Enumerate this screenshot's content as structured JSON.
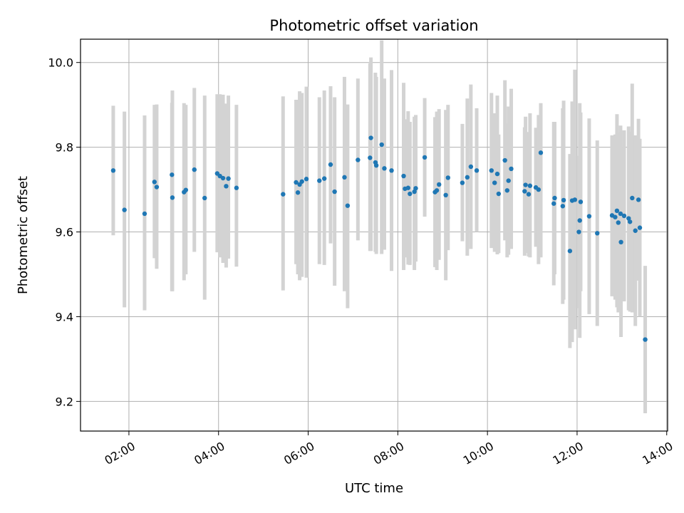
{
  "chart_data": {
    "type": "scatter",
    "title": "Photometric offset variation",
    "xlabel": "UTC time",
    "ylabel": "Photometric offset",
    "xlim_hours": [
      0.92,
      14.02
    ],
    "ylim": [
      9.13,
      10.055
    ],
    "grid": true,
    "x_ticks": [
      {
        "hour": 2,
        "label": "02:00"
      },
      {
        "hour": 4,
        "label": "04:00"
      },
      {
        "hour": 6,
        "label": "06:00"
      },
      {
        "hour": 8,
        "label": "08:00"
      },
      {
        "hour": 10,
        "label": "10:00"
      },
      {
        "hour": 12,
        "label": "12:00"
      },
      {
        "hour": 14,
        "label": "14:00"
      }
    ],
    "y_ticks": [
      {
        "value": 9.2,
        "label": "9.2"
      },
      {
        "value": 9.4,
        "label": "9.4"
      },
      {
        "value": 9.6,
        "label": "9.6"
      },
      {
        "value": 9.8,
        "label": "9.8"
      },
      {
        "value": 10.0,
        "label": "10.0"
      }
    ],
    "point_color": "#1f77b4",
    "errorbar_color": "#d3d3d3",
    "series": [
      {
        "name": "offset",
        "x_hours": [
          1.65,
          1.9,
          2.35,
          2.57,
          2.62,
          2.96,
          2.97,
          3.23,
          3.27,
          3.46,
          3.69,
          3.97,
          4.03,
          4.1,
          4.17,
          4.22,
          4.4,
          5.44,
          5.73,
          5.77,
          5.81,
          5.86,
          5.96,
          6.25,
          6.36,
          6.5,
          6.59,
          6.81,
          6.88,
          7.11,
          7.38,
          7.4,
          7.5,
          7.52,
          7.64,
          7.7,
          7.86,
          8.13,
          8.16,
          8.23,
          8.27,
          8.37,
          8.4,
          8.6,
          8.83,
          8.87,
          8.92,
          9.07,
          9.12,
          9.44,
          9.55,
          9.63,
          9.76,
          10.09,
          10.16,
          10.22,
          10.25,
          10.39,
          10.44,
          10.47,
          10.53,
          10.83,
          10.85,
          10.92,
          10.95,
          11.08,
          11.14,
          11.19,
          11.48,
          11.5,
          11.68,
          11.7,
          11.84,
          11.89,
          11.95,
          12.04,
          12.06,
          12.08,
          12.27,
          12.45,
          12.78,
          12.85,
          12.89,
          12.92,
          12.97,
          12.98,
          13.05,
          13.15,
          13.18,
          13.23,
          13.3,
          13.37,
          13.4,
          13.52
        ],
        "y": [
          9.745,
          9.652,
          9.643,
          9.718,
          9.706,
          9.735,
          9.681,
          9.694,
          9.699,
          9.747,
          9.68,
          9.738,
          9.732,
          9.727,
          9.708,
          9.726,
          9.704,
          9.689,
          9.717,
          9.693,
          9.712,
          9.719,
          9.725,
          9.721,
          9.726,
          9.759,
          9.695,
          9.729,
          9.662,
          9.77,
          9.775,
          9.822,
          9.764,
          9.757,
          9.806,
          9.75,
          9.745,
          9.732,
          9.702,
          9.704,
          9.69,
          9.695,
          9.703,
          9.776,
          9.694,
          9.698,
          9.712,
          9.687,
          9.728,
          9.716,
          9.729,
          9.754,
          9.745,
          9.745,
          9.716,
          9.737,
          9.69,
          9.769,
          9.698,
          9.721,
          9.749,
          9.696,
          9.711,
          9.689,
          9.709,
          9.705,
          9.7,
          9.787,
          9.667,
          9.68,
          9.661,
          9.675,
          9.555,
          9.674,
          9.676,
          9.6,
          9.627,
          9.671,
          9.637,
          9.597,
          9.639,
          9.635,
          9.65,
          9.622,
          9.643,
          9.576,
          9.638,
          9.632,
          9.624,
          9.68,
          9.603,
          9.676,
          9.61,
          9.346
        ],
        "err_low": [
          9.592,
          9.422,
          9.415,
          9.538,
          9.513,
          9.46,
          9.46,
          9.486,
          9.5,
          9.553,
          9.44,
          9.552,
          9.54,
          9.527,
          9.516,
          9.537,
          9.518,
          9.462,
          9.524,
          9.5,
          9.486,
          9.494,
          9.492,
          9.524,
          9.522,
          9.573,
          9.473,
          9.46,
          9.42,
          9.58,
          9.555,
          9.555,
          9.553,
          9.548,
          9.548,
          9.558,
          9.508,
          9.51,
          9.54,
          9.523,
          9.522,
          9.51,
          9.53,
          9.636,
          9.517,
          9.51,
          9.534,
          9.486,
          9.557,
          9.578,
          9.544,
          9.56,
          9.6,
          9.562,
          9.553,
          9.547,
          9.55,
          9.58,
          9.54,
          9.546,
          9.56,
          9.544,
          9.55,
          9.542,
          9.54,
          9.565,
          9.524,
          9.54,
          9.474,
          9.5,
          9.43,
          9.44,
          9.326,
          9.34,
          9.37,
          9.42,
          9.35,
          9.46,
          9.406,
          9.378,
          9.448,
          9.44,
          9.422,
          9.41,
          9.435,
          9.352,
          9.436,
          9.415,
          9.412,
          9.41,
          9.378,
          9.485,
          9.4,
          9.172
        ],
        "err_high": [
          9.898,
          9.884,
          9.875,
          9.9,
          9.901,
          9.905,
          9.934,
          9.904,
          9.9,
          9.94,
          9.922,
          9.925,
          9.925,
          9.924,
          9.903,
          9.922,
          9.9,
          9.92,
          9.912,
          9.912,
          9.932,
          9.928,
          9.943,
          9.918,
          9.934,
          9.944,
          9.918,
          9.966,
          9.901,
          9.962,
          9.998,
          10.012,
          9.976,
          9.966,
          10.052,
          9.962,
          9.982,
          9.952,
          9.866,
          9.885,
          9.86,
          9.872,
          9.876,
          9.916,
          9.871,
          9.884,
          9.89,
          9.888,
          9.9,
          9.855,
          9.915,
          9.948,
          9.892,
          9.928,
          9.88,
          9.922,
          9.83,
          9.958,
          9.856,
          9.896,
          9.938,
          9.847,
          9.872,
          9.836,
          9.88,
          9.846,
          9.876,
          9.904,
          9.86,
          9.86,
          9.892,
          9.91,
          9.784,
          9.908,
          9.983,
          9.78,
          9.904,
          9.882,
          9.868,
          9.816,
          9.828,
          9.83,
          9.878,
          9.834,
          9.851,
          9.8,
          9.84,
          9.849,
          9.836,
          9.95,
          9.828,
          9.867,
          9.82,
          9.52
        ]
      }
    ]
  }
}
